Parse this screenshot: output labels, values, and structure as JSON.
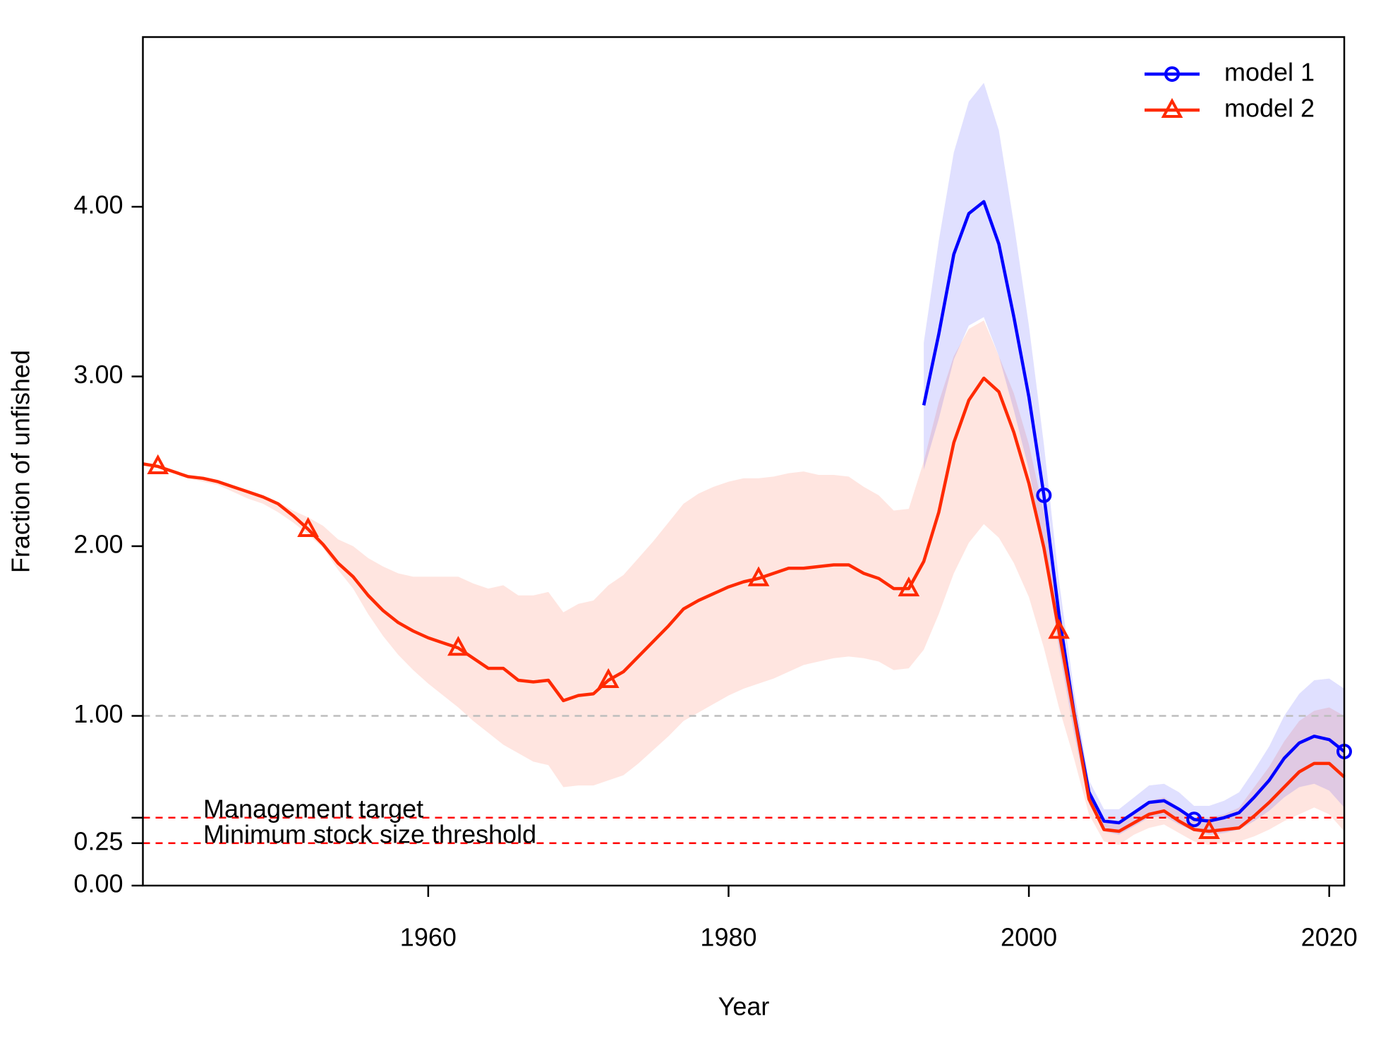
{
  "chart_data": {
    "type": "line",
    "xlabel": "Year",
    "ylabel": "Fraction of unfished",
    "xlim": [
      1941,
      2021
    ],
    "ylim": [
      0,
      5
    ],
    "xticks": [
      1960,
      1980,
      2000,
      2020
    ],
    "yticks": [
      {
        "value": 0,
        "label": "0.00"
      },
      {
        "value": 0.25,
        "label": "0.25"
      },
      {
        "value": 0.4,
        "label": null
      },
      {
        "value": 1,
        "label": "1.00"
      },
      {
        "value": 2,
        "label": "2.00"
      },
      {
        "value": 3,
        "label": "3.00"
      },
      {
        "value": 4,
        "label": "4.00"
      }
    ],
    "legend": "top-right",
    "hlines": [
      {
        "value": 1,
        "color": "#bdbdbd"
      },
      {
        "value": 0.4,
        "label": "Management target",
        "color": "#ff0000"
      },
      {
        "value": 0.25,
        "label": "Minimum stock size threshold",
        "color": "#ff0000"
      }
    ],
    "series": [
      {
        "name": "model 1",
        "color": "#0000ff",
        "marker": "circle",
        "x": [
          1993,
          1994,
          1995,
          1996,
          1997,
          1998,
          1999,
          2000,
          2001,
          2002,
          2003,
          2004,
          2005,
          2006,
          2007,
          2008,
          2009,
          2010,
          2011,
          2012,
          2013,
          2014,
          2015,
          2016,
          2017,
          2018,
          2019,
          2020,
          2021
        ],
        "values": [
          2.83,
          3.25,
          3.72,
          3.96,
          4.03,
          3.78,
          3.35,
          2.88,
          2.3,
          1.6,
          1.02,
          0.55,
          0.38,
          0.37,
          0.43,
          0.49,
          0.5,
          0.45,
          0.39,
          0.38,
          0.4,
          0.43,
          0.52,
          0.62,
          0.75,
          0.84,
          0.88,
          0.86,
          0.79
        ],
        "upper": [
          3.2,
          3.8,
          4.32,
          4.62,
          4.73,
          4.45,
          3.9,
          3.3,
          2.6,
          1.8,
          1.15,
          0.62,
          0.45,
          0.45,
          0.52,
          0.59,
          0.6,
          0.55,
          0.47,
          0.47,
          0.5,
          0.55,
          0.68,
          0.82,
          1.0,
          1.13,
          1.21,
          1.22,
          1.16
        ],
        "lower": [
          2.45,
          2.75,
          3.1,
          3.3,
          3.35,
          3.12,
          2.8,
          2.45,
          1.98,
          1.4,
          0.9,
          0.48,
          0.32,
          0.3,
          0.35,
          0.4,
          0.41,
          0.36,
          0.32,
          0.3,
          0.31,
          0.33,
          0.38,
          0.44,
          0.52,
          0.58,
          0.6,
          0.56,
          0.46
        ]
      },
      {
        "name": "model 2",
        "color": "#ff2a00",
        "marker": "triangle",
        "x": [
          1941,
          1942,
          1943,
          1944,
          1945,
          1946,
          1947,
          1948,
          1949,
          1950,
          1951,
          1952,
          1953,
          1954,
          1955,
          1956,
          1957,
          1958,
          1959,
          1960,
          1961,
          1962,
          1963,
          1964,
          1965,
          1966,
          1967,
          1968,
          1969,
          1970,
          1971,
          1972,
          1973,
          1974,
          1975,
          1976,
          1977,
          1978,
          1979,
          1980,
          1981,
          1982,
          1983,
          1984,
          1985,
          1986,
          1987,
          1988,
          1989,
          1990,
          1991,
          1992,
          1993,
          1994,
          1995,
          1996,
          1997,
          1998,
          1999,
          2000,
          2001,
          2002,
          2003,
          2004,
          2005,
          2006,
          2007,
          2008,
          2009,
          2010,
          2011,
          2012,
          2013,
          2014,
          2015,
          2016,
          2017,
          2018,
          2019,
          2020,
          2021
        ],
        "values": [
          2.485,
          2.47,
          2.44,
          2.41,
          2.4,
          2.38,
          2.35,
          2.32,
          2.29,
          2.25,
          2.18,
          2.1,
          2.01,
          1.9,
          1.82,
          1.71,
          1.62,
          1.55,
          1.5,
          1.46,
          1.43,
          1.4,
          1.34,
          1.28,
          1.28,
          1.21,
          1.2,
          1.21,
          1.09,
          1.12,
          1.13,
          1.21,
          1.26,
          1.35,
          1.44,
          1.53,
          1.63,
          1.68,
          1.72,
          1.76,
          1.79,
          1.81,
          1.84,
          1.87,
          1.87,
          1.88,
          1.89,
          1.89,
          1.84,
          1.81,
          1.75,
          1.75,
          1.91,
          2.2,
          2.61,
          2.86,
          2.99,
          2.91,
          2.67,
          2.37,
          1.99,
          1.5,
          1.01,
          0.51,
          0.33,
          0.32,
          0.37,
          0.42,
          0.44,
          0.38,
          0.33,
          0.32,
          0.33,
          0.34,
          0.41,
          0.49,
          0.58,
          0.67,
          0.72,
          0.72,
          0.64
        ],
        "upper": [
          2.49,
          2.47,
          2.44,
          2.42,
          2.4,
          2.38,
          2.34,
          2.31,
          2.29,
          2.26,
          2.21,
          2.17,
          2.12,
          2.04,
          2.0,
          1.93,
          1.88,
          1.84,
          1.82,
          1.82,
          1.82,
          1.82,
          1.78,
          1.75,
          1.77,
          1.71,
          1.71,
          1.73,
          1.61,
          1.66,
          1.68,
          1.77,
          1.83,
          1.93,
          2.03,
          2.14,
          2.25,
          2.31,
          2.35,
          2.38,
          2.4,
          2.4,
          2.41,
          2.43,
          2.44,
          2.42,
          2.42,
          2.41,
          2.35,
          2.3,
          2.21,
          2.22,
          2.5,
          2.85,
          3.12,
          3.28,
          3.33,
          3.12,
          2.9,
          2.6,
          2.2,
          1.6,
          1.1,
          0.57,
          0.4,
          0.38,
          0.43,
          0.5,
          0.52,
          0.46,
          0.4,
          0.4,
          0.42,
          0.46,
          0.58,
          0.7,
          0.85,
          0.97,
          1.03,
          1.05,
          1.0
        ],
        "lower": [
          2.48,
          2.46,
          2.43,
          2.4,
          2.38,
          2.36,
          2.32,
          2.28,
          2.25,
          2.2,
          2.14,
          2.07,
          1.99,
          1.86,
          1.75,
          1.6,
          1.47,
          1.36,
          1.27,
          1.19,
          1.12,
          1.05,
          0.97,
          0.9,
          0.83,
          0.78,
          0.73,
          0.71,
          0.58,
          0.59,
          0.59,
          0.62,
          0.65,
          0.72,
          0.8,
          0.88,
          0.97,
          1.02,
          1.07,
          1.12,
          1.16,
          1.19,
          1.22,
          1.26,
          1.3,
          1.32,
          1.34,
          1.35,
          1.34,
          1.32,
          1.27,
          1.28,
          1.39,
          1.6,
          1.84,
          2.02,
          2.13,
          2.05,
          1.9,
          1.7,
          1.4,
          1.05,
          0.75,
          0.42,
          0.26,
          0.24,
          0.3,
          0.34,
          0.36,
          0.31,
          0.26,
          0.24,
          0.25,
          0.26,
          0.29,
          0.33,
          0.38,
          0.42,
          0.46,
          0.42,
          0.32
        ]
      }
    ]
  }
}
